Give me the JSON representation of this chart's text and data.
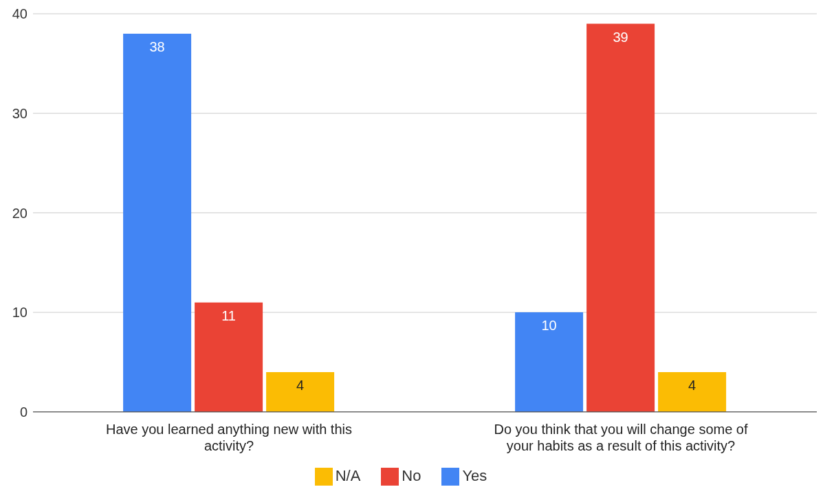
{
  "chart_data": {
    "type": "bar",
    "categories": [
      "Have you learned anything new with this activity?",
      "Do you think that you will change some of your habits as a result of this activity?"
    ],
    "series": [
      {
        "name": "Yes",
        "color": "#4285f4",
        "values": [
          38,
          10
        ]
      },
      {
        "name": "No",
        "color": "#ea4335",
        "values": [
          11,
          39
        ]
      },
      {
        "name": "N/A",
        "color": "#fbbc04",
        "values": [
          4,
          4
        ]
      }
    ],
    "ylim": [
      0,
      40
    ],
    "yticks": [
      0,
      10,
      20,
      30,
      40
    ],
    "grid": "y",
    "legend": "bottom",
    "data_labels": true
  }
}
